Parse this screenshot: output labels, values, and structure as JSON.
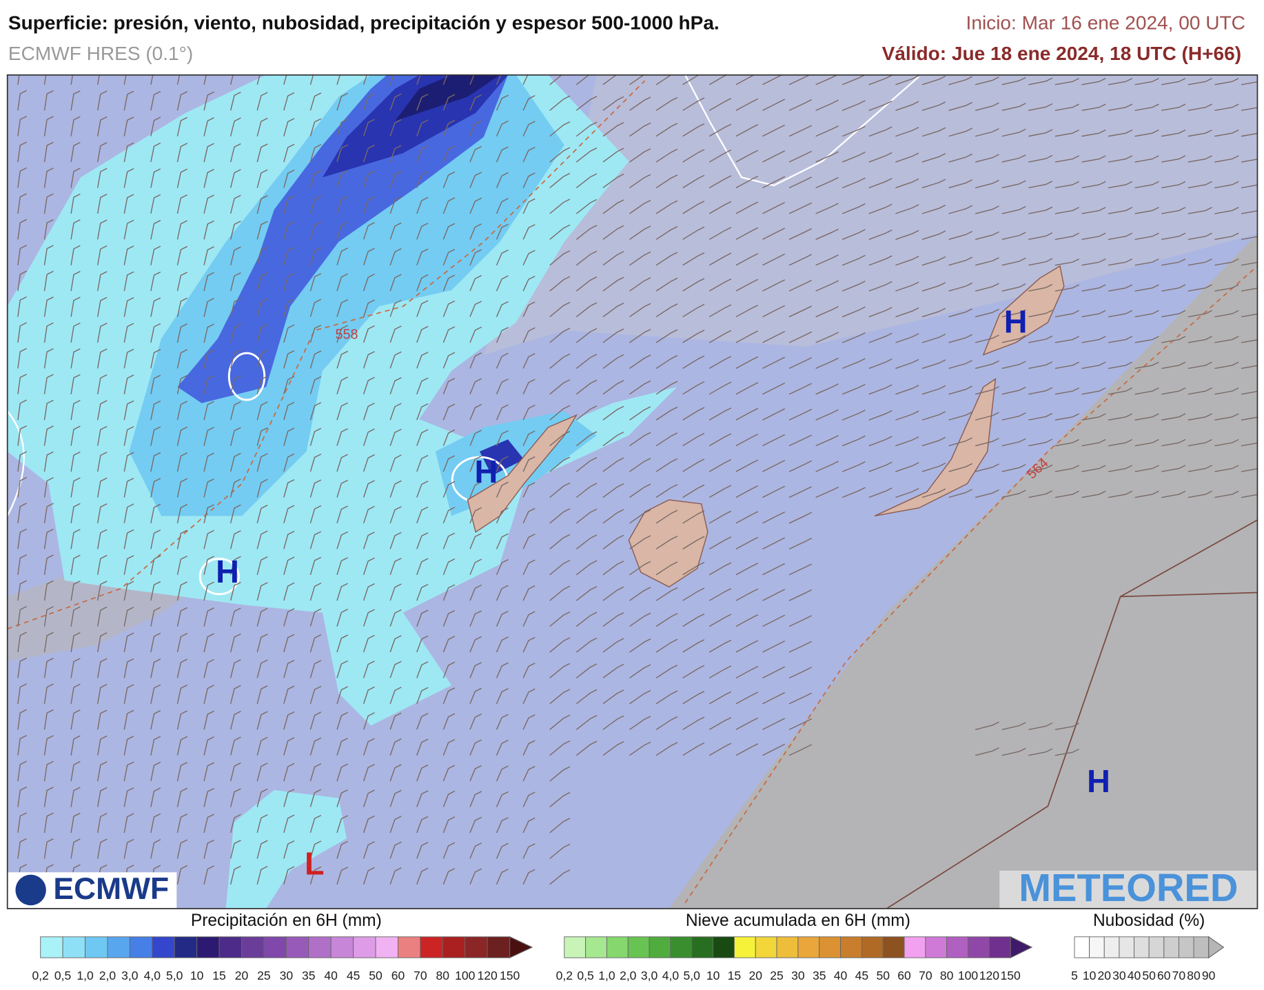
{
  "header": {
    "title": "Superficie: presión, viento, nubosidad, precipitación y espesor 500-1000 hPa.",
    "subtitle": "ECMWF HRES (0.1°)",
    "init": "Inicio: Mar 16 ene 2024, 00 UTC",
    "valid": "Válido: Jue 18 ene 2024, 18 UTC (H+66)"
  },
  "map": {
    "pressure_centers": [
      "H",
      "H",
      "H",
      "H",
      "L"
    ],
    "contour_labels": [
      "558",
      "564"
    ],
    "logos": [
      "ECMWF",
      "METEORED"
    ]
  },
  "legends": [
    {
      "title": "Precipitación en 6H (mm)",
      "labels": [
        "0,2",
        "0,5",
        "1,0",
        "2,0",
        "3,0",
        "4,0",
        "5,0",
        "10",
        "15",
        "20",
        "25",
        "30",
        "35",
        "40",
        "45",
        "50",
        "60",
        "70",
        "80",
        "100",
        "120",
        "150"
      ],
      "colors": [
        "#a8f2f8",
        "#8ee0f6",
        "#6ec8f2",
        "#58a6ee",
        "#4680e6",
        "#3346cc",
        "#222a86",
        "#2c1a72",
        "#4c2c88",
        "#6a3e98",
        "#8048aa",
        "#985ab8",
        "#b070c8",
        "#c886d8",
        "#de9ce8",
        "#f0b2f2",
        "#ea8080",
        "#cc2424",
        "#aa2020",
        "#8a2626",
        "#6c2020",
        "#4a1010"
      ]
    },
    {
      "title": "Nieve acumulada en 6H (mm)",
      "labels": [
        "0,2",
        "0,5",
        "1,0",
        "2,0",
        "3,0",
        "4,0",
        "5,0",
        "10",
        "15",
        "20",
        "25",
        "30",
        "35",
        "40",
        "45",
        "50",
        "60",
        "70",
        "80",
        "100",
        "120",
        "150"
      ],
      "colors": [
        "#c8f4b8",
        "#a6e890",
        "#86d86e",
        "#68c452",
        "#50ac3e",
        "#3a8e2e",
        "#286e20",
        "#184a12",
        "#f6f23a",
        "#f2d63a",
        "#eebe3a",
        "#eaa63a",
        "#dc9232",
        "#c87e2c",
        "#b06a26",
        "#8c5220",
        "#f2a0f0",
        "#d07ad8",
        "#b060c0",
        "#9048a8",
        "#70308e",
        "#401a6a"
      ]
    },
    {
      "title": "Nubosidad (%)",
      "labels": [
        "5",
        "10",
        "20",
        "30",
        "40",
        "50",
        "60",
        "70",
        "80",
        "90"
      ],
      "colors": [
        "#ffffff",
        "#f6f6f6",
        "#eeeeee",
        "#e6e6e6",
        "#dedede",
        "#d6d6d6",
        "#cecece",
        "#c6c6c6",
        "#bebebe",
        "#b6b6b6"
      ]
    }
  ]
}
